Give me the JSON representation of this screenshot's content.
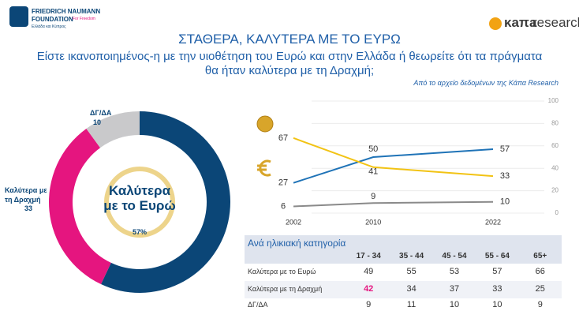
{
  "header": {
    "org_line1": "FRIEDRICH NAUMANN",
    "org_line2": "FOUNDATION",
    "org_tagline": "For Freedom",
    "org_region": "Ελλάδα και Κύπρος",
    "brand": "κaπa",
    "brand_suffix": "research",
    "title": "ΣΤΑΘΕΡΑ, ΚΑΛΥΤΕΡΑ ΜΕ ΤΟ ΕΥΡΩ",
    "question": "Είστε ικανοποιημένος-η με την υιοθέτηση του Ευρώ και στην Ελλάδα ή θεωρείτε ότι τα πράγματα θα ήταν καλύτερα με τη Δραχμή;",
    "source": "Από το αρχείο δεδομένων της Κάπα Research"
  },
  "chart_data": [
    {
      "type": "donut",
      "categories": [
        "Καλύτερα με το Ευρώ",
        "Καλύτερα με τη Δραχμή",
        "ΔΓ/ΔΑ"
      ],
      "values": [
        57,
        33,
        10
      ],
      "value_labels": [
        "57%",
        "33",
        "10"
      ],
      "colors": [
        "#0b4677",
        "#e5157f",
        "#c9c9cb"
      ]
    },
    {
      "type": "line",
      "x": [
        2002,
        2010,
        2022
      ],
      "xlim": [
        2002,
        2022
      ],
      "xticks": [
        2002,
        2010,
        2022
      ],
      "ylim": [
        0,
        100
      ],
      "yticks": [
        0,
        20,
        40,
        60,
        80,
        100
      ],
      "grid": true,
      "series": [
        {
          "color": "#1f73b7",
          "values": [
            27,
            50,
            57
          ]
        },
        {
          "color": "#f2c314",
          "values": [
            67,
            41,
            33
          ]
        },
        {
          "color": "#8a8a8a",
          "values": [
            6,
            9,
            10
          ]
        }
      ]
    }
  ],
  "table": {
    "title": "Ανά ηλικιακή κατηγορία",
    "columns": [
      "17 - 34",
      "35 - 44",
      "45 - 54",
      "55 - 64",
      "65+"
    ],
    "rows": [
      {
        "label": "Καλύτερα με το Ευρώ",
        "values": [
          49,
          55,
          53,
          57,
          66
        ]
      },
      {
        "label": "Καλύτερα με τη Δραχμή",
        "values": [
          42,
          34,
          37,
          33,
          25
        ]
      },
      {
        "label": "ΔΓ/ΔΑ",
        "values": [
          9,
          11,
          10,
          10,
          9
        ]
      }
    ],
    "highlight": {
      "row": 1,
      "col": 0,
      "color": "#e5157f"
    }
  }
}
